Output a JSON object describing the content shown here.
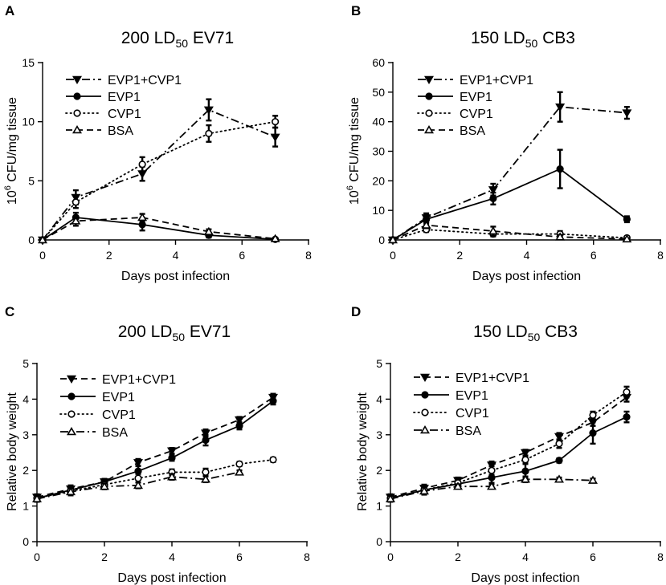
{
  "chart_data": [
    {
      "type": "line",
      "panel": "A",
      "title": {
        "prefix": "200 LD",
        "subscript": "50",
        "suffix": " EV71"
      },
      "xlabel": "Days post infection",
      "ylabel": {
        "prefix": "10",
        "superscript": "6",
        "suffix": " CFU/mg tissue"
      },
      "xlim": [
        0,
        8
      ],
      "ylim": [
        0,
        15
      ],
      "xticks": [
        0,
        2,
        4,
        6,
        8
      ],
      "yticks": [
        0,
        5,
        10,
        15
      ],
      "legend_position": "top-left",
      "series": [
        {
          "name": "EVP1+CVP1",
          "style": "dashdot",
          "marker": "triangle-down",
          "x": [
            0,
            1,
            3,
            5,
            7
          ],
          "values": [
            0,
            3.6,
            5.6,
            11.0,
            8.7
          ],
          "errors": [
            0,
            0.6,
            0.6,
            0.9,
            0.8
          ]
        },
        {
          "name": "EVP1",
          "style": "solid",
          "marker": "circle-filled",
          "x": [
            0,
            1,
            3,
            5,
            7
          ],
          "values": [
            0,
            1.9,
            1.3,
            0.4,
            0.05
          ],
          "errors": [
            0,
            0.4,
            0.5,
            0.2,
            0.05
          ]
        },
        {
          "name": "CVP1",
          "style": "dotted",
          "marker": "circle-open",
          "x": [
            0,
            1,
            3,
            5,
            7
          ],
          "values": [
            0,
            3.2,
            6.4,
            9.0,
            10.0
          ],
          "errors": [
            0,
            0.5,
            0.6,
            0.7,
            0.5
          ]
        },
        {
          "name": "BSA",
          "style": "dashed",
          "marker": "triangle-up-open",
          "x": [
            0,
            1,
            3,
            5,
            7
          ],
          "values": [
            0,
            1.6,
            1.9,
            0.7,
            0.1
          ],
          "errors": [
            0,
            0.4,
            0.3,
            0.2,
            0.05
          ]
        }
      ]
    },
    {
      "type": "line",
      "panel": "B",
      "title": {
        "prefix": "150 LD",
        "subscript": "50",
        "suffix": " CB3"
      },
      "xlabel": "Days post infection",
      "ylabel": {
        "prefix": "10",
        "superscript": "6",
        "suffix": " CFU/mg tissue"
      },
      "xlim": [
        0,
        8
      ],
      "ylim": [
        0,
        60
      ],
      "xticks": [
        0,
        2,
        4,
        6,
        8
      ],
      "yticks": [
        0,
        10,
        20,
        30,
        40,
        50,
        60
      ],
      "legend_position": "top-left",
      "series": [
        {
          "name": "EVP1+CVP1",
          "style": "dashdot",
          "marker": "triangle-down",
          "x": [
            0,
            1,
            3,
            5,
            7
          ],
          "values": [
            0,
            7.5,
            17.0,
            45.0,
            43.0
          ],
          "errors": [
            0,
            1.5,
            2.0,
            5.0,
            2.0
          ]
        },
        {
          "name": "EVP1",
          "style": "solid",
          "marker": "circle-filled",
          "x": [
            0,
            1,
            3,
            5,
            7
          ],
          "values": [
            0,
            7.0,
            14.0,
            24.0,
            7.0
          ],
          "errors": [
            0,
            1.5,
            2.0,
            6.5,
            1.0
          ]
        },
        {
          "name": "CVP1",
          "style": "dotted",
          "marker": "circle-open",
          "x": [
            0,
            1,
            3,
            5,
            7
          ],
          "values": [
            0,
            3.5,
            2.0,
            2.0,
            0.7
          ],
          "errors": [
            0,
            0.8,
            0.8,
            1.0,
            0.4
          ]
        },
        {
          "name": "BSA",
          "style": "dashed",
          "marker": "triangle-up-open",
          "x": [
            0,
            1,
            3,
            5,
            7
          ],
          "values": [
            0,
            5.0,
            3.0,
            1.0,
            0.3
          ],
          "errors": [
            0,
            1.0,
            1.5,
            0.7,
            0.3
          ]
        }
      ]
    },
    {
      "type": "line",
      "panel": "C",
      "title": {
        "prefix": "200 LD",
        "subscript": "50",
        "suffix": " EV71"
      },
      "xlabel": "Days post infection",
      "ylabel": {
        "prefix": "Relative body weight",
        "superscript": "",
        "suffix": ""
      },
      "xlim": [
        0,
        8
      ],
      "ylim": [
        0,
        5
      ],
      "xticks": [
        0,
        2,
        4,
        6,
        8
      ],
      "yticks": [
        0,
        1,
        2,
        3,
        4,
        5
      ],
      "legend_position": "top-left",
      "series": [
        {
          "name": "EVP1+CVP1",
          "style": "dashed",
          "marker": "triangle-down",
          "x": [
            0,
            1,
            2,
            3,
            4,
            5,
            6,
            7
          ],
          "values": [
            1.25,
            1.48,
            1.68,
            2.22,
            2.55,
            3.05,
            3.42,
            4.05
          ],
          "errors": [
            0.08,
            0.1,
            0.08,
            0.1,
            0.08,
            0.1,
            0.08,
            0.1
          ]
        },
        {
          "name": "EVP1",
          "style": "solid",
          "marker": "circle-filled",
          "x": [
            0,
            1,
            2,
            3,
            4,
            5,
            6,
            7
          ],
          "values": [
            1.22,
            1.45,
            1.68,
            1.98,
            2.35,
            2.85,
            3.25,
            3.95
          ],
          "errors": [
            0.08,
            0.12,
            0.08,
            0.15,
            0.08,
            0.15,
            0.1,
            0.1
          ]
        },
        {
          "name": "CVP1",
          "style": "dotted",
          "marker": "circle-open",
          "x": [
            0,
            1,
            2,
            3,
            4,
            5,
            6,
            7
          ],
          "values": [
            1.22,
            1.42,
            1.6,
            1.78,
            1.95,
            1.95,
            2.18,
            2.3
          ],
          "errors": [
            0.08,
            0.1,
            0.08,
            0.12,
            0.08,
            0.1,
            0.06,
            0.06
          ]
        },
        {
          "name": "BSA",
          "style": "dashdot",
          "marker": "triangle-up-open",
          "x": [
            0,
            1,
            2,
            3,
            4,
            5,
            6
          ],
          "values": [
            1.2,
            1.4,
            1.55,
            1.58,
            1.82,
            1.75,
            1.95
          ],
          "errors": [
            0.08,
            0.1,
            0.08,
            0.08,
            0.08,
            0.08,
            0.05
          ]
        }
      ]
    },
    {
      "type": "line",
      "panel": "D",
      "title": {
        "prefix": "150 LD",
        "subscript": "50",
        "suffix": " CB3"
      },
      "xlabel": "Days post infection",
      "ylabel": {
        "prefix": "Relative body weight",
        "superscript": "",
        "suffix": ""
      },
      "xlim": [
        0,
        8
      ],
      "ylim": [
        0,
        5
      ],
      "xticks": [
        0,
        2,
        4,
        6,
        8
      ],
      "yticks": [
        0,
        1,
        2,
        3,
        4,
        5
      ],
      "legend_position": "top-left",
      "series": [
        {
          "name": "EVP1+CVP1",
          "style": "dashed",
          "marker": "triangle-down",
          "x": [
            0,
            1,
            2,
            3,
            4,
            5,
            6,
            7
          ],
          "values": [
            1.25,
            1.5,
            1.72,
            2.15,
            2.5,
            2.95,
            3.35,
            4.05
          ],
          "errors": [
            0.08,
            0.1,
            0.08,
            0.1,
            0.08,
            0.1,
            0.1,
            0.12
          ]
        },
        {
          "name": "EVP1",
          "style": "solid",
          "marker": "circle-filled",
          "x": [
            0,
            1,
            2,
            3,
            4,
            5,
            6,
            7
          ],
          "values": [
            1.22,
            1.45,
            1.62,
            1.8,
            1.98,
            2.28,
            3.05,
            3.5
          ],
          "errors": [
            0.08,
            0.1,
            0.08,
            0.15,
            0.2,
            0.06,
            0.3,
            0.15
          ]
        },
        {
          "name": "CVP1",
          "style": "dotted",
          "marker": "circle-open",
          "x": [
            0,
            1,
            2,
            3,
            4,
            5,
            6,
            7
          ],
          "values": [
            1.22,
            1.45,
            1.65,
            2.0,
            2.3,
            2.75,
            3.55,
            4.2
          ],
          "errors": [
            0.08,
            0.1,
            0.08,
            0.12,
            0.1,
            0.12,
            0.1,
            0.15
          ]
        },
        {
          "name": "BSA",
          "style": "dashdot",
          "marker": "triangle-up-open",
          "x": [
            0,
            1,
            2,
            3,
            4,
            5,
            6
          ],
          "values": [
            1.2,
            1.42,
            1.55,
            1.55,
            1.75,
            1.75,
            1.72
          ],
          "errors": [
            0.08,
            0.1,
            0.06,
            0.06,
            0.08,
            0.05,
            0.05
          ]
        }
      ]
    }
  ]
}
